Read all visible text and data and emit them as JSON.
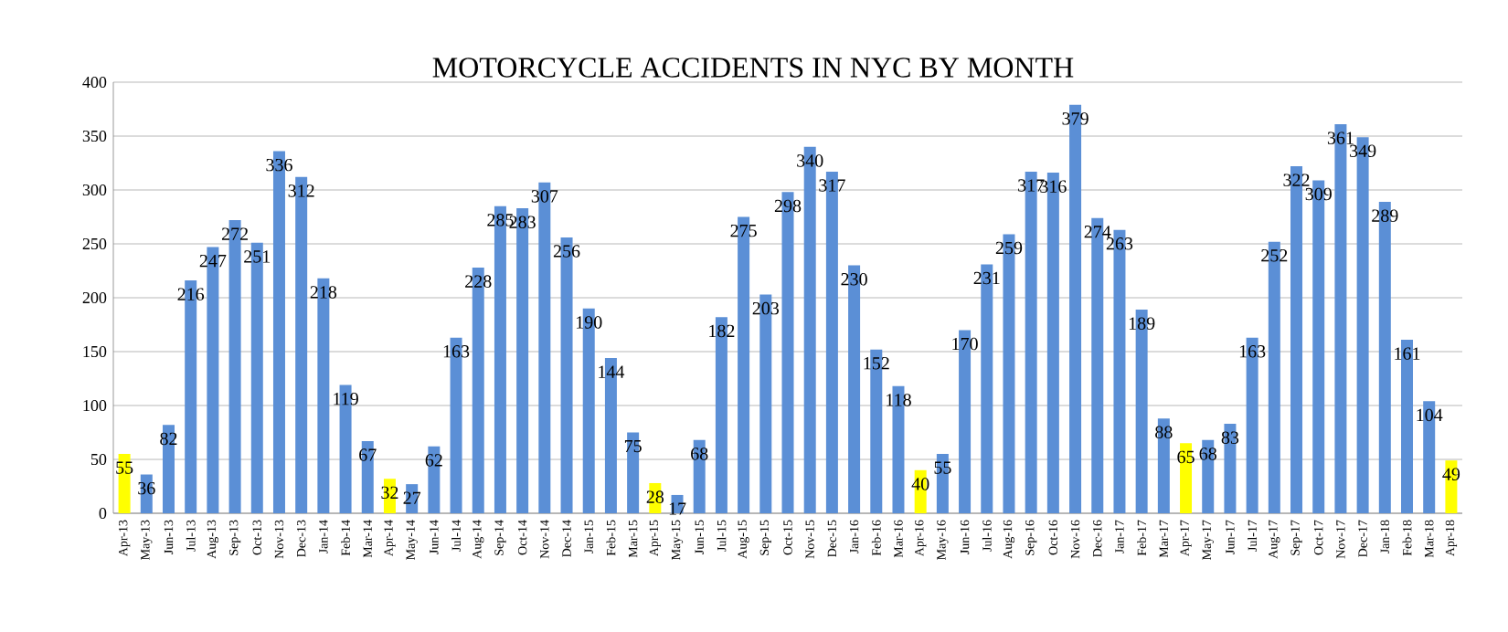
{
  "chart_data": {
    "type": "bar",
    "title": "MOTORCYCLE ACCIDENTS IN NYC BY MONTH",
    "categories": [
      "Apr-13",
      "May-13",
      "Jun-13",
      "Jul-13",
      "Aug-13",
      "Sep-13",
      "Oct-13",
      "Nov-13",
      "Dec-13",
      "Jan-14",
      "Feb-14",
      "Mar-14",
      "Apr-14",
      "May-14",
      "Jun-14",
      "Jul-14",
      "Aug-14",
      "Sep-14",
      "Oct-14",
      "Nov-14",
      "Dec-14",
      "Jan-15",
      "Feb-15",
      "Mar-15",
      "Apr-15",
      "May-15",
      "Jun-15",
      "Jul-15",
      "Aug-15",
      "Sep-15",
      "Oct-15",
      "Nov-15",
      "Dec-15",
      "Jan-16",
      "Feb-16",
      "Mar-16",
      "Apr-16",
      "May-16",
      "Jun-16",
      "Jul-16",
      "Aug-16",
      "Sep-16",
      "Oct-16",
      "Nov-16",
      "Dec-16",
      "Jan-17",
      "Feb-17",
      "Mar-17",
      "Apr-17",
      "May-17",
      "Jun-17",
      "Jul-17",
      "Aug-17",
      "Sep-17",
      "Oct-17",
      "Nov-17",
      "Dec-17",
      "Jan-18",
      "Feb-18",
      "Mar-18",
      "Apr-18"
    ],
    "values": [
      55,
      36,
      82,
      216,
      247,
      272,
      251,
      336,
      312,
      218,
      119,
      67,
      32,
      27,
      62,
      163,
      228,
      285,
      283,
      307,
      256,
      190,
      144,
      75,
      28,
      17,
      68,
      182,
      275,
      203,
      298,
      340,
      317,
      230,
      152,
      118,
      40,
      55,
      170,
      231,
      259,
      317,
      316,
      379,
      274,
      263,
      189,
      88,
      65,
      68,
      83,
      163,
      252,
      322,
      309,
      361,
      349,
      289,
      161,
      104,
      49
    ],
    "colors": [
      "#ffff00",
      "#5b8fd6",
      "#5b8fd6",
      "#5b8fd6",
      "#5b8fd6",
      "#5b8fd6",
      "#5b8fd6",
      "#5b8fd6",
      "#5b8fd6",
      "#5b8fd6",
      "#5b8fd6",
      "#5b8fd6",
      "#ffff00",
      "#5b8fd6",
      "#5b8fd6",
      "#5b8fd6",
      "#5b8fd6",
      "#5b8fd6",
      "#5b8fd6",
      "#5b8fd6",
      "#5b8fd6",
      "#5b8fd6",
      "#5b8fd6",
      "#5b8fd6",
      "#ffff00",
      "#5b8fd6",
      "#5b8fd6",
      "#5b8fd6",
      "#5b8fd6",
      "#5b8fd6",
      "#5b8fd6",
      "#5b8fd6",
      "#5b8fd6",
      "#5b8fd6",
      "#5b8fd6",
      "#5b8fd6",
      "#ffff00",
      "#5b8fd6",
      "#5b8fd6",
      "#5b8fd6",
      "#5b8fd6",
      "#5b8fd6",
      "#5b8fd6",
      "#5b8fd6",
      "#5b8fd6",
      "#5b8fd6",
      "#5b8fd6",
      "#5b8fd6",
      "#ffff00",
      "#5b8fd6",
      "#5b8fd6",
      "#5b8fd6",
      "#5b8fd6",
      "#5b8fd6",
      "#5b8fd6",
      "#5b8fd6",
      "#5b8fd6",
      "#5b8fd6",
      "#5b8fd6",
      "#5b8fd6",
      "#ffff00"
    ],
    "ylim": [
      0,
      400
    ],
    "yticks": [
      0,
      50,
      100,
      150,
      200,
      250,
      300,
      350,
      400
    ],
    "grid": "y",
    "data_labels": true
  }
}
